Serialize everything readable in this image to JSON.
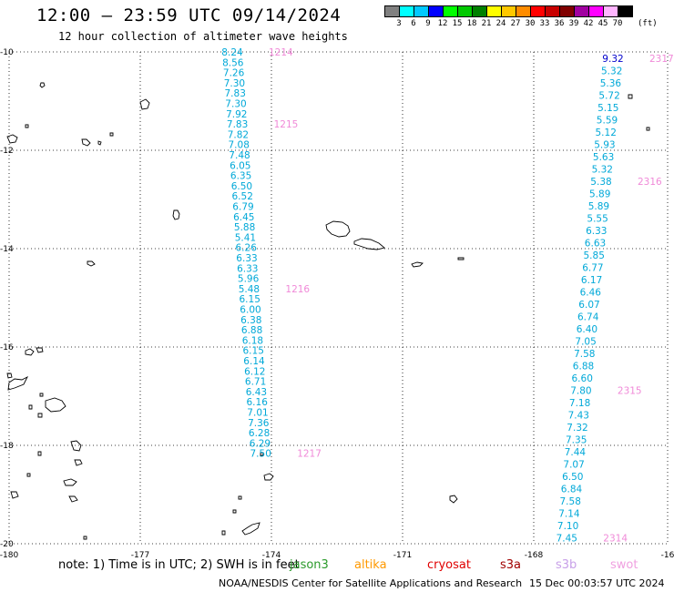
{
  "title": "12:00 — 23:59 UTC 09/14/2024",
  "subtitle": "12 hour collection of altimeter wave heights",
  "legend": {
    "colors": [
      "#808080",
      "#00ffff",
      "#00c8ff",
      "#0000ff",
      "#00ff00",
      "#00c800",
      "#008000",
      "#ffff00",
      "#ffc800",
      "#ff8c00",
      "#ff0000",
      "#c80000",
      "#800000",
      "#a000a0",
      "#ff00ff",
      "#ffb4ff",
      "#000000"
    ],
    "labels": [
      "3",
      "6",
      "9",
      "12",
      "15",
      "18",
      "21",
      "24",
      "27",
      "30",
      "33",
      "36",
      "39",
      "42",
      "45",
      "70"
    ],
    "unit": "(ft)"
  },
  "map": {
    "lon_range": [
      -180,
      -166
    ],
    "lat_range": [
      -20,
      -10
    ],
    "lon_ticks": [
      "-180",
      "-177",
      "-174",
      "-171",
      "-168",
      "-16"
    ],
    "lat_ticks": [
      "-10",
      "-12",
      "-14",
      "-16",
      "-18",
      "-20"
    ]
  },
  "tracks": [
    {
      "color": "#00a8d8",
      "start_x": 255,
      "start_y": 57,
      "dx": 0.8,
      "dy": 11.3,
      "values": [
        "8.24",
        "8.56",
        "7.26",
        "7.30",
        "7.83",
        "7.30",
        "7.92",
        "7.83",
        "7.82",
        "7.08",
        "7.48",
        "6.05",
        "6.35",
        "6.50",
        "6.52",
        "6.79",
        "6.45",
        "5.88",
        "5.41",
        "6.26",
        "6.33",
        "6.33",
        "5.96",
        "5.48",
        "6.15",
        "6.00",
        "6.38",
        "6.88",
        "6.18",
        "6.15",
        "6.14",
        "6.12",
        "6.71",
        "6.43",
        "6.16",
        "7.01",
        "7.36",
        "6.28",
        "6.29",
        "7.50"
      ],
      "markers": [
        {
          "text": "1214",
          "index": 0
        },
        {
          "text": "1215",
          "index": 7
        },
        {
          "text": "1216",
          "index": 23
        },
        {
          "text": "1217",
          "index": 40
        }
      ]
    },
    {
      "color": "#00a8d8",
      "start_x": 673,
      "start_y": 64,
      "dx": -1.3,
      "dy": 13.5,
      "values": [
        "9.32",
        "5.32",
        "5.36",
        "5.72",
        "5.15",
        "5.59",
        "5.12",
        "5.93",
        "5.63",
        "5.32",
        "5.38",
        "5.89",
        "5.89",
        "5.55",
        "6.33",
        "6.63",
        "5.85",
        "6.77",
        "6.17",
        "6.46",
        "6.07",
        "6.74",
        "6.40",
        "7.05",
        "7.58",
        "6.88",
        "6.60",
        "7.80",
        "7.18",
        "7.43",
        "7.32",
        "7.35",
        "7.44",
        "7.07",
        "6.50",
        "6.84",
        "7.58",
        "7.14",
        "7.10",
        "7.45"
      ],
      "markers": [
        {
          "text": "2317",
          "index": 0
        },
        {
          "text": "2316",
          "index": 10
        },
        {
          "text": "2315",
          "index": 27
        },
        {
          "text": "2314",
          "index": 41
        }
      ]
    }
  ],
  "time_marker_color": "#f08ad8",
  "note": "note:  1) Time is in UTC; 2) SWH is in feet",
  "satellites": [
    {
      "name": "jason3",
      "color": "#2a9a2a"
    },
    {
      "name": "altika",
      "color": "#ff9900"
    },
    {
      "name": "cryosat",
      "color": "#e00000"
    },
    {
      "name": "s3a",
      "color": "#a00000"
    },
    {
      "name": "s3b",
      "color": "#c8a0e8"
    },
    {
      "name": "swot",
      "color": "#f0a0e0"
    }
  ],
  "credit": "NOAA/NESDIS Center for Satellite Applications and Research",
  "generated": "15 Dec 00:03:57 UTC 2024"
}
